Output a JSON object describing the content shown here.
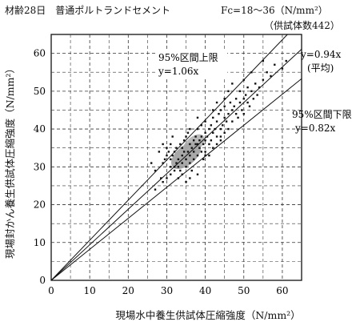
{
  "header": {
    "title": "材齢28日　普通ポルトランドセメント",
    "strength_range": "Fc=18～36（N/mm²）",
    "specimen_count": "（供試体数442）"
  },
  "chart_data": {
    "type": "scatter",
    "xlabel": "現場水中養生供試体圧縮強度（N/mm²）",
    "ylabel": "現場封かん養生供試体圧縮強度（N/mm²）",
    "xlim": [
      0,
      65
    ],
    "ylim": [
      0,
      65
    ],
    "x_ticks": [
      0,
      10,
      20,
      30,
      40,
      50,
      60
    ],
    "y_ticks": [
      0,
      10,
      20,
      30,
      40,
      50,
      60
    ],
    "grid": true,
    "lines": [
      {
        "slope": 1.06,
        "label_lines": [
          "95%区間上限",
          "y=1.06x"
        ]
      },
      {
        "slope": 0.94,
        "label_lines": [
          "y=0.94x",
          "(平均)"
        ]
      },
      {
        "slope": 0.82,
        "label_lines": [
          "95%区間下限",
          "y=0.82x"
        ]
      }
    ],
    "points": [
      [
        26,
        31
      ],
      [
        27,
        29
      ],
      [
        28,
        34
      ],
      [
        28.5,
        27
      ],
      [
        29,
        31
      ],
      [
        29,
        36
      ],
      [
        29.5,
        32
      ],
      [
        30,
        33
      ],
      [
        30,
        35
      ],
      [
        30,
        27
      ],
      [
        30.5,
        34
      ],
      [
        31,
        32
      ],
      [
        31,
        30
      ],
      [
        31,
        36
      ],
      [
        31.5,
        33
      ],
      [
        31.5,
        38
      ],
      [
        32,
        30
      ],
      [
        32,
        34
      ],
      [
        32,
        29
      ],
      [
        32.5,
        31
      ],
      [
        32.5,
        35
      ],
      [
        33,
        27
      ],
      [
        33,
        32
      ],
      [
        33,
        30
      ],
      [
        33.5,
        29
      ],
      [
        33.5,
        36
      ],
      [
        34,
        33
      ],
      [
        34,
        31
      ],
      [
        34,
        35
      ],
      [
        34,
        28
      ],
      [
        34.5,
        37
      ],
      [
        34.5,
        34
      ],
      [
        35,
        30
      ],
      [
        35,
        32
      ],
      [
        35,
        38
      ],
      [
        35,
        26
      ],
      [
        35.5,
        34
      ],
      [
        35.5,
        39
      ],
      [
        36,
        31
      ],
      [
        36,
        36
      ],
      [
        36,
        33
      ],
      [
        36,
        40
      ],
      [
        36.5,
        35
      ],
      [
        36.5,
        29
      ],
      [
        37,
        34
      ],
      [
        37,
        37
      ],
      [
        37,
        32
      ],
      [
        37.5,
        38
      ],
      [
        37.5,
        36
      ],
      [
        38,
        33
      ],
      [
        38,
        36
      ],
      [
        38,
        40
      ],
      [
        38,
        28
      ],
      [
        38.5,
        37
      ],
      [
        38.5,
        35
      ],
      [
        39,
        34
      ],
      [
        39,
        38
      ],
      [
        39,
        41
      ],
      [
        39.5,
        36
      ],
      [
        39.5,
        32
      ],
      [
        40,
        37
      ],
      [
        40,
        39
      ],
      [
        40,
        34
      ],
      [
        40,
        42
      ],
      [
        40.5,
        38
      ],
      [
        41,
        36
      ],
      [
        41,
        40
      ],
      [
        41,
        33
      ],
      [
        41.5,
        41
      ],
      [
        41.5,
        37
      ],
      [
        42,
        39
      ],
      [
        42,
        43
      ],
      [
        42,
        35
      ],
      [
        42.5,
        40
      ],
      [
        43,
        38
      ],
      [
        43,
        42
      ],
      [
        43,
        36
      ],
      [
        43.5,
        44
      ],
      [
        44,
        40
      ],
      [
        44,
        37
      ],
      [
        44,
        45
      ],
      [
        44.5,
        41
      ],
      [
        45,
        43
      ],
      [
        45,
        39
      ],
      [
        45,
        46
      ],
      [
        45.5,
        42
      ],
      [
        46,
        44
      ],
      [
        46,
        40
      ],
      [
        46.5,
        47
      ],
      [
        47,
        45
      ],
      [
        47,
        42
      ],
      [
        47.5,
        46
      ],
      [
        48,
        44
      ],
      [
        48,
        48
      ],
      [
        48.5,
        43
      ],
      [
        49,
        47
      ],
      [
        49,
        50
      ],
      [
        49.5,
        45
      ],
      [
        50,
        48
      ],
      [
        50,
        44
      ],
      [
        50.5,
        49
      ],
      [
        51,
        47
      ],
      [
        51,
        51
      ],
      [
        51.5,
        46
      ],
      [
        52,
        50
      ],
      [
        52.5,
        48
      ],
      [
        53,
        52
      ],
      [
        53.5,
        49
      ],
      [
        54,
        51
      ],
      [
        55,
        53
      ],
      [
        56,
        55
      ],
      [
        57,
        54
      ],
      [
        60,
        56
      ],
      [
        61,
        58
      ],
      [
        47,
        52
      ],
      [
        52,
        55
      ],
      [
        45,
        48
      ],
      [
        50,
        53
      ],
      [
        43,
        47
      ],
      [
        38,
        43
      ],
      [
        29,
        26
      ],
      [
        27,
        24
      ],
      [
        31,
        28
      ],
      [
        40,
        33
      ],
      [
        44,
        38
      ],
      [
        55,
        58
      ],
      [
        36,
        27
      ],
      [
        42,
        45
      ],
      [
        58,
        57
      ],
      [
        46,
        50
      ]
    ],
    "dense_cluster": {
      "center": [
        35,
        33
      ]
    }
  }
}
